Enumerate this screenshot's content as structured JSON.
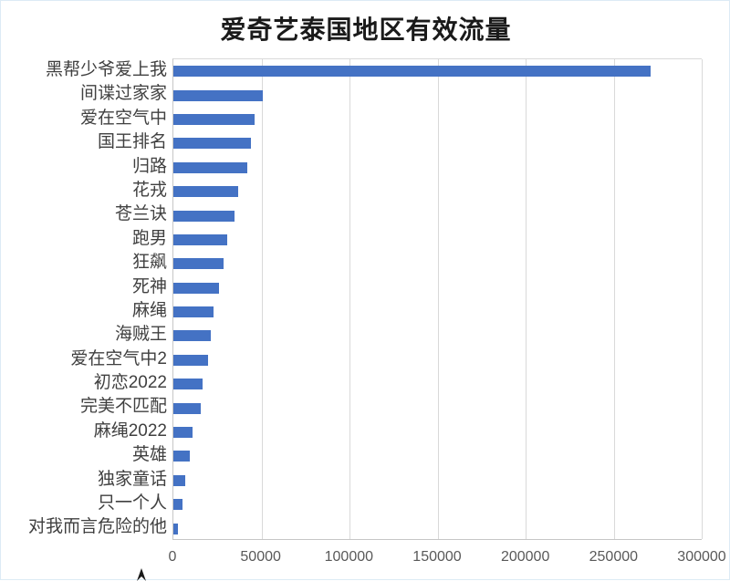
{
  "chart_data": {
    "type": "bar",
    "orientation": "horizontal",
    "title": "爱奇艺泰国地区有效流量",
    "categories": [
      "黑帮少爷爱上我",
      "间谍过家家",
      "爱在空气中",
      "国王排名",
      "归路",
      "花戎",
      "苍兰诀",
      "跑男",
      "狂飙",
      "死神",
      "麻绳",
      "海贼王",
      "爱在空气中2",
      "初恋2022",
      "完美不匹配",
      "麻绳2022",
      "英雄",
      "独家童话",
      "只一个人",
      "对我而言危险的他"
    ],
    "values": [
      271000,
      51000,
      46000,
      44000,
      42000,
      37000,
      34500,
      30500,
      28500,
      26000,
      23000,
      21000,
      19700,
      16500,
      15500,
      11000,
      9300,
      6700,
      5200,
      2500
    ],
    "xlabel": "",
    "ylabel": "",
    "xlim": [
      0,
      300000
    ],
    "x_ticks": [
      0,
      50000,
      100000,
      150000,
      200000,
      250000,
      300000
    ],
    "x_tick_labels": [
      "0",
      "50000",
      "100000",
      "150000",
      "200000",
      "250000",
      "300000"
    ],
    "grid": "vertical-only",
    "legend": "none",
    "style": {
      "bar_color": "#4472C4",
      "gridline_color": "#D9D9D9",
      "axis_line_color": "#C6C6C6",
      "title_color": "#1A1A1A",
      "category_label_color": "#404040",
      "tick_label_color": "#595959",
      "background_color": "#FFFFFF"
    }
  }
}
